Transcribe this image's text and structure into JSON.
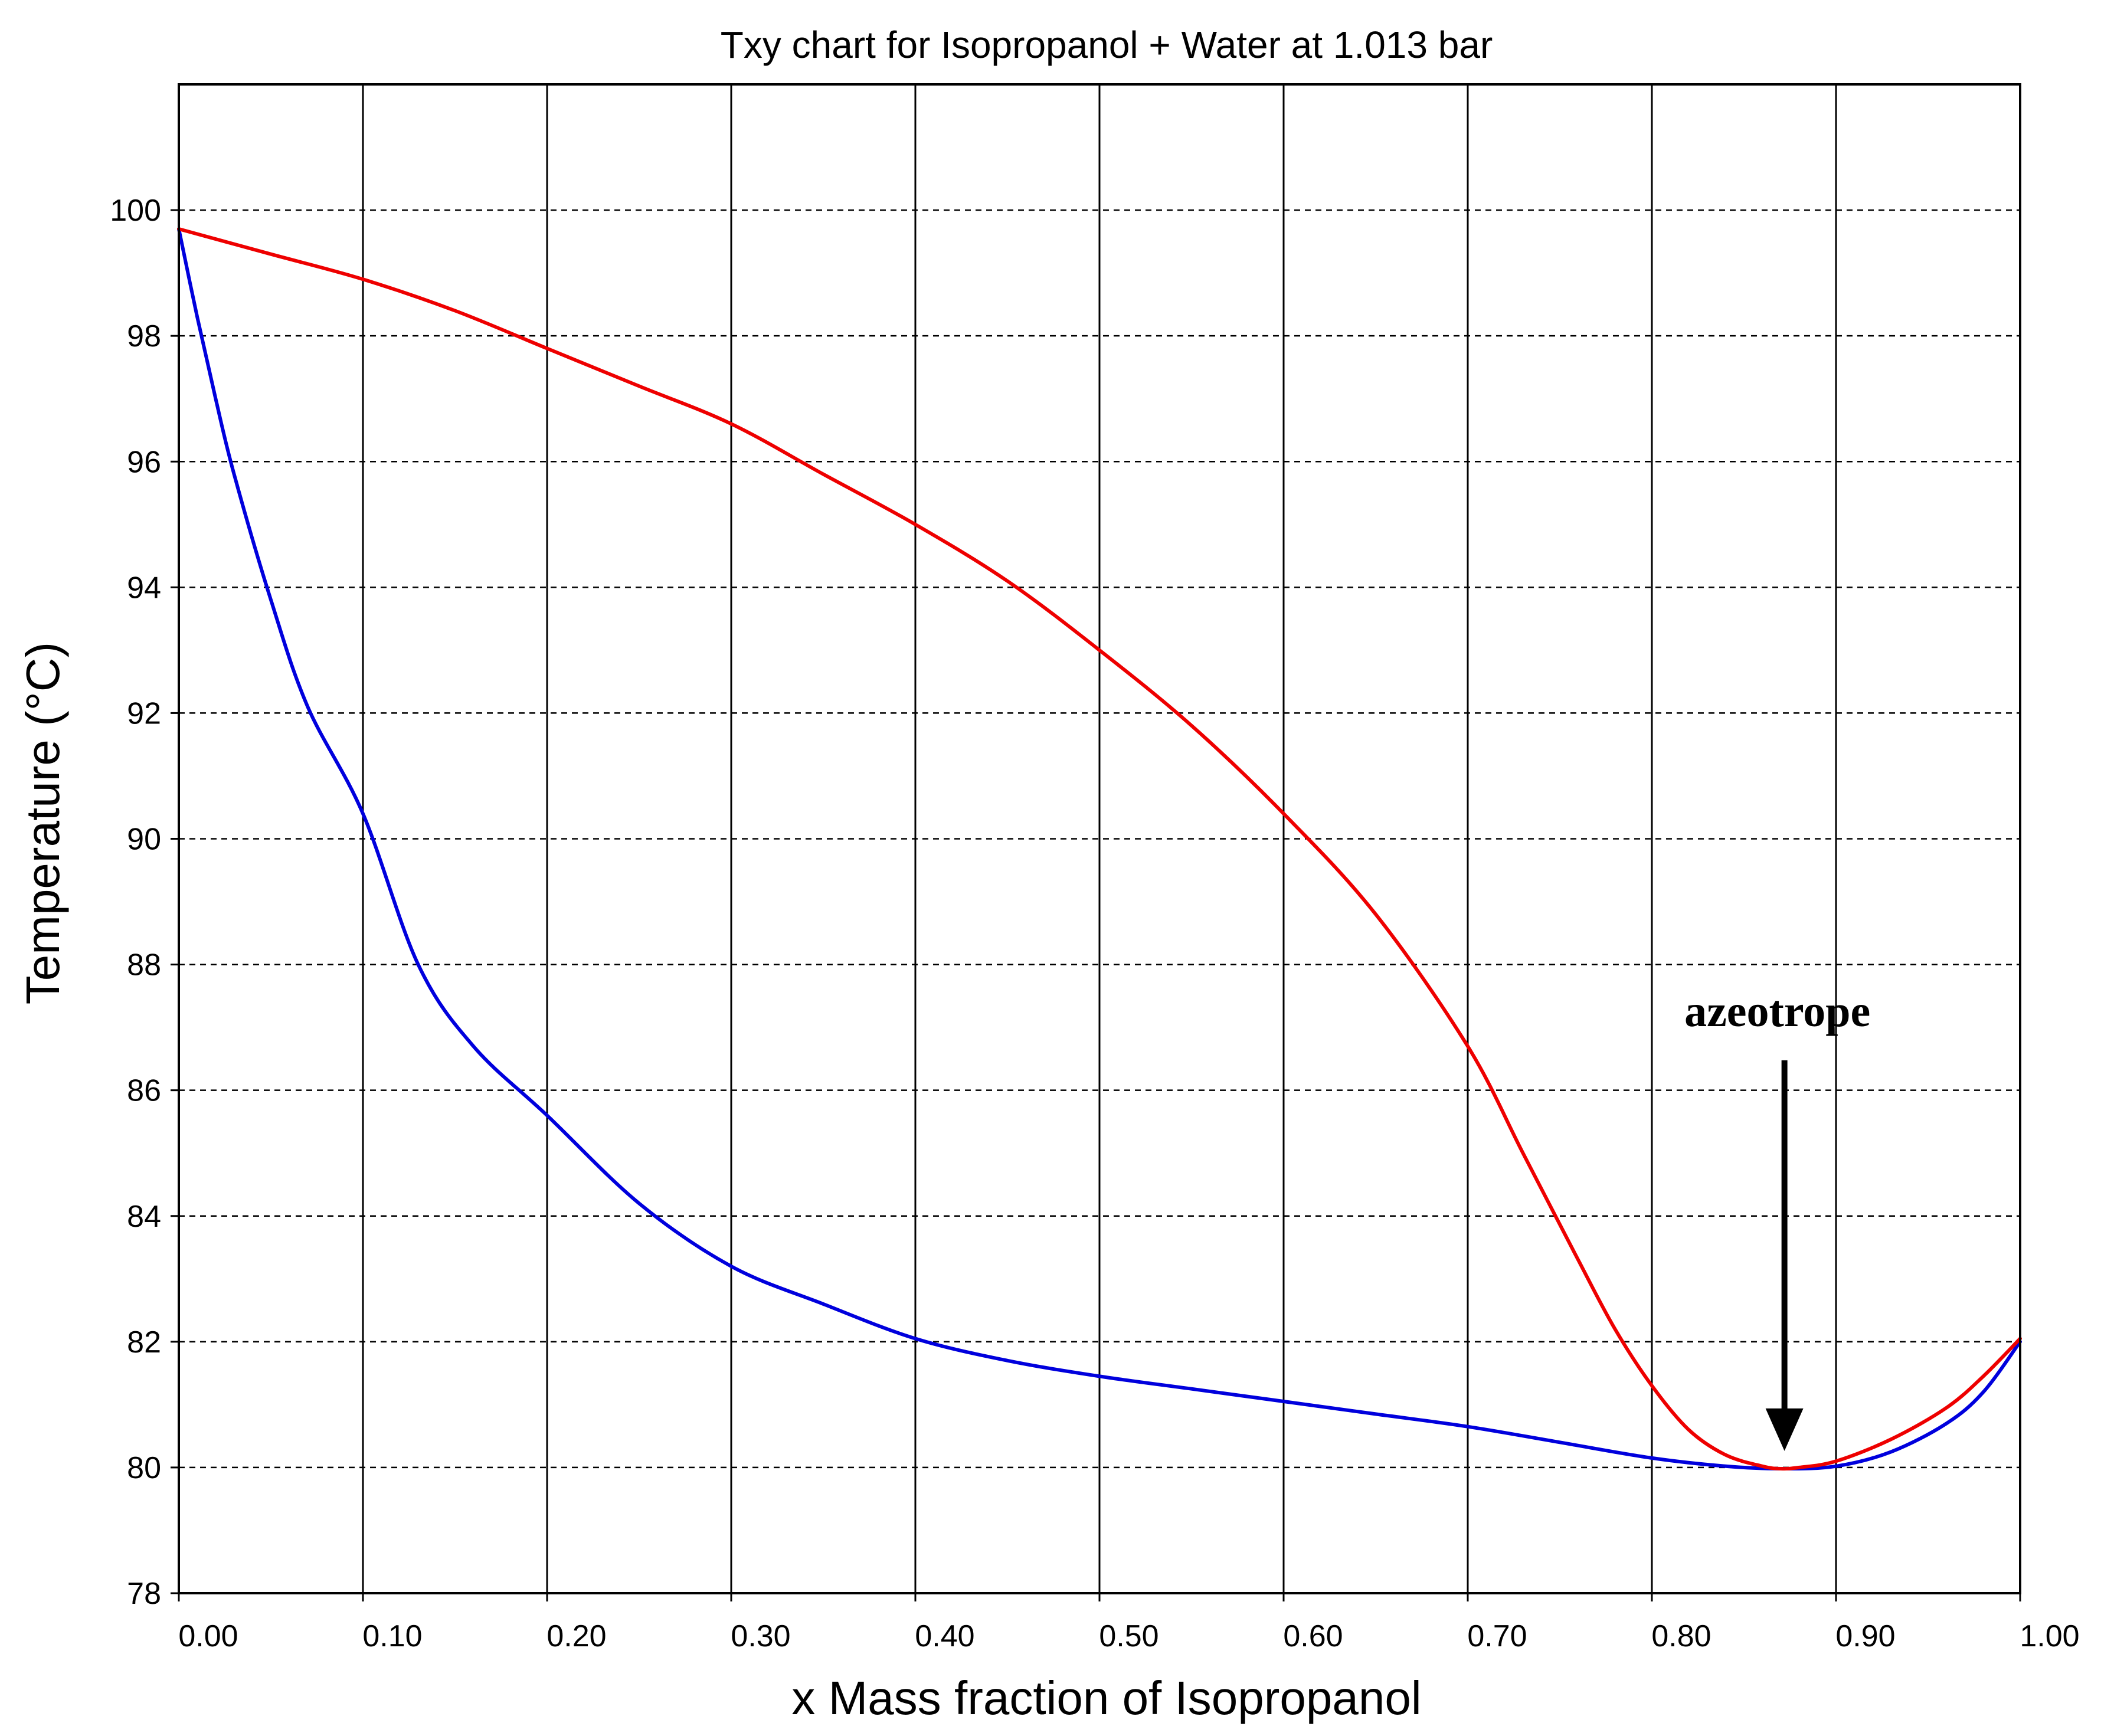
{
  "chart_data": {
    "type": "line",
    "title": "Txy chart for Isopropanol + Water at 1.013 bar",
    "xlabel": "x Mass fraction of Isopropanol",
    "ylabel": "Temperature (°C)",
    "xlim": [
      0,
      1
    ],
    "ylim": [
      78,
      102
    ],
    "x_ticks": [
      "0.00",
      "0.10",
      "0.20",
      "0.30",
      "0.40",
      "0.50",
      "0.60",
      "0.70",
      "0.80",
      "0.90",
      "1.00"
    ],
    "y_ticks": [
      "78",
      "80",
      "82",
      "84",
      "86",
      "88",
      "90",
      "92",
      "94",
      "96",
      "98",
      "100"
    ],
    "grid": true,
    "series": [
      {
        "color": "#0000dd",
        "x": [
          0.0,
          0.01,
          0.02,
          0.03,
          0.05,
          0.07,
          0.1,
          0.13,
          0.16,
          0.2,
          0.25,
          0.3,
          0.35,
          0.4,
          0.45,
          0.5,
          0.55,
          0.6,
          0.65,
          0.7,
          0.75,
          0.8,
          0.84,
          0.87,
          0.9,
          0.93,
          0.96,
          0.98,
          1.0
        ],
        "y": [
          99.7,
          98.3,
          97.0,
          95.8,
          93.8,
          92.1,
          90.4,
          88.0,
          86.7,
          85.6,
          84.2,
          83.2,
          82.6,
          82.05,
          81.7,
          81.45,
          81.25,
          81.05,
          80.85,
          80.65,
          80.4,
          80.15,
          80.02,
          79.98,
          80.02,
          80.25,
          80.7,
          81.2,
          82.0
        ]
      },
      {
        "color": "#ee0000",
        "x": [
          0.0,
          0.05,
          0.1,
          0.15,
          0.2,
          0.25,
          0.3,
          0.35,
          0.4,
          0.45,
          0.5,
          0.55,
          0.6,
          0.65,
          0.7,
          0.73,
          0.76,
          0.78,
          0.8,
          0.82,
          0.84,
          0.86,
          0.87,
          0.88,
          0.9,
          0.93,
          0.96,
          0.98,
          1.0
        ],
        "y": [
          99.7,
          99.3,
          98.9,
          98.4,
          97.8,
          97.2,
          96.6,
          95.8,
          95.0,
          94.1,
          93.0,
          91.8,
          90.4,
          88.8,
          86.7,
          85.0,
          83.3,
          82.2,
          81.3,
          80.6,
          80.2,
          80.02,
          79.98,
          80.0,
          80.1,
          80.45,
          80.95,
          81.45,
          82.05
        ]
      }
    ],
    "annotations": [
      {
        "text": "azeotrope",
        "x": 0.872,
        "y": 80.0
      }
    ]
  }
}
